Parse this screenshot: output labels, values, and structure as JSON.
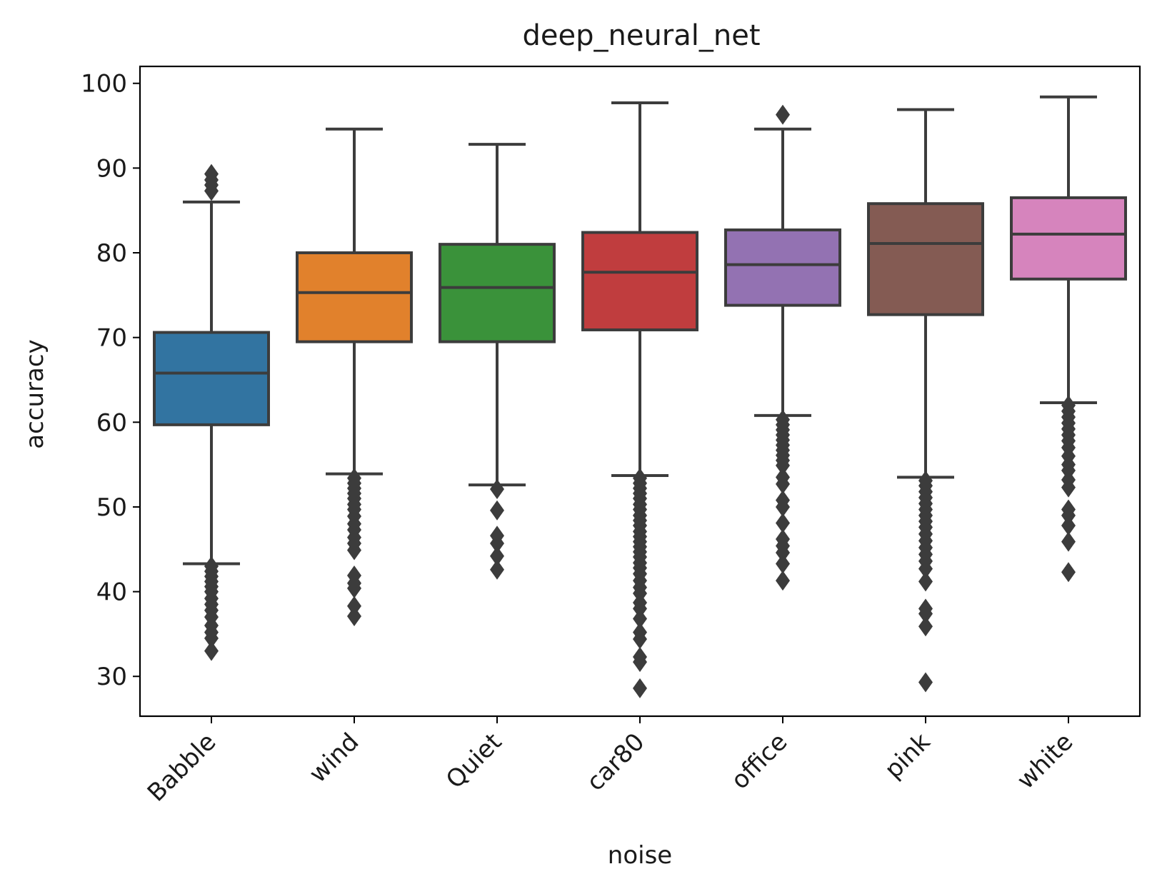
{
  "chart_data": {
    "type": "box",
    "title": "deep_neural_net",
    "xlabel": "noise",
    "ylabel": "accuracy",
    "ylim": [
      25.3,
      102.0
    ],
    "yticks": [
      30,
      40,
      50,
      60,
      70,
      80,
      90,
      100
    ],
    "grid": false,
    "legend": "none",
    "categories": [
      "Babble",
      "wind",
      "Quiet",
      "car80",
      "office",
      "pink",
      "white"
    ],
    "colors": [
      "#3274a1",
      "#e1812c",
      "#3a923a",
      "#c03d3e",
      "#9372b2",
      "#845b53",
      "#d684bd"
    ],
    "boxes": [
      {
        "whisker_low": 43.3,
        "q1": 59.7,
        "median": 65.8,
        "q3": 70.6,
        "whisker_high": 86.0,
        "outliers": [
          33.0,
          34.5,
          35.2,
          36.0,
          37.0,
          37.8,
          38.5,
          39.2,
          40.0,
          40.6,
          41.2,
          41.8,
          42.4,
          43.0,
          87.3,
          88.0,
          88.6,
          89.3
        ]
      },
      {
        "whisker_low": 53.9,
        "q1": 69.5,
        "median": 75.3,
        "q3": 80.0,
        "whisker_high": 94.6,
        "outliers": [
          37.1,
          38.3,
          40.4,
          41.0,
          41.9,
          44.9,
          45.7,
          46.4,
          47.3,
          48.0,
          48.9,
          49.7,
          50.3,
          51.0,
          51.6,
          52.2,
          52.8,
          53.4
        ]
      },
      {
        "whisker_low": 52.6,
        "q1": 69.5,
        "median": 75.9,
        "q3": 81.0,
        "whisker_high": 92.8,
        "outliers": [
          42.6,
          44.2,
          45.7,
          46.6,
          49.6,
          52.1
        ]
      },
      {
        "whisker_low": 53.7,
        "q1": 70.9,
        "median": 77.7,
        "q3": 82.4,
        "whisker_high": 97.7,
        "outliers": [
          28.6,
          31.7,
          32.3,
          34.4,
          35.2,
          36.8,
          38.0,
          38.7,
          39.8,
          40.5,
          41.3,
          42.1,
          42.8,
          43.4,
          44.1,
          44.7,
          45.3,
          45.9,
          46.5,
          47.1,
          47.8,
          48.4,
          49.0,
          49.7,
          50.3,
          51.0,
          51.6,
          52.2,
          52.8,
          53.4
        ]
      },
      {
        "whisker_low": 60.8,
        "q1": 73.8,
        "median": 78.6,
        "q3": 82.7,
        "whisker_high": 94.6,
        "outliers": [
          41.3,
          43.3,
          44.6,
          45.4,
          46.2,
          48.1,
          50.0,
          50.8,
          52.7,
          53.5,
          54.9,
          55.5,
          56.1,
          56.7,
          57.3,
          57.9,
          58.5,
          59.1,
          59.7,
          60.3,
          96.3
        ]
      },
      {
        "whisker_low": 53.5,
        "q1": 72.7,
        "median": 81.1,
        "q3": 85.8,
        "whisker_high": 96.9,
        "outliers": [
          29.3,
          35.9,
          37.4,
          38.0,
          41.2,
          42.7,
          43.6,
          44.4,
          45.2,
          46.0,
          46.8,
          47.6,
          48.3,
          49.0,
          49.7,
          50.4,
          51.1,
          51.8,
          52.5,
          53.1
        ]
      },
      {
        "whisker_low": 62.3,
        "q1": 76.9,
        "median": 82.2,
        "q3": 86.5,
        "whisker_high": 98.4,
        "outliers": [
          42.3,
          45.9,
          47.8,
          49.0,
          49.7,
          52.3,
          53.2,
          54.3,
          55.0,
          56.0,
          57.0,
          57.8,
          58.5,
          59.2,
          59.9,
          60.6,
          61.3,
          62.0
        ]
      }
    ]
  }
}
